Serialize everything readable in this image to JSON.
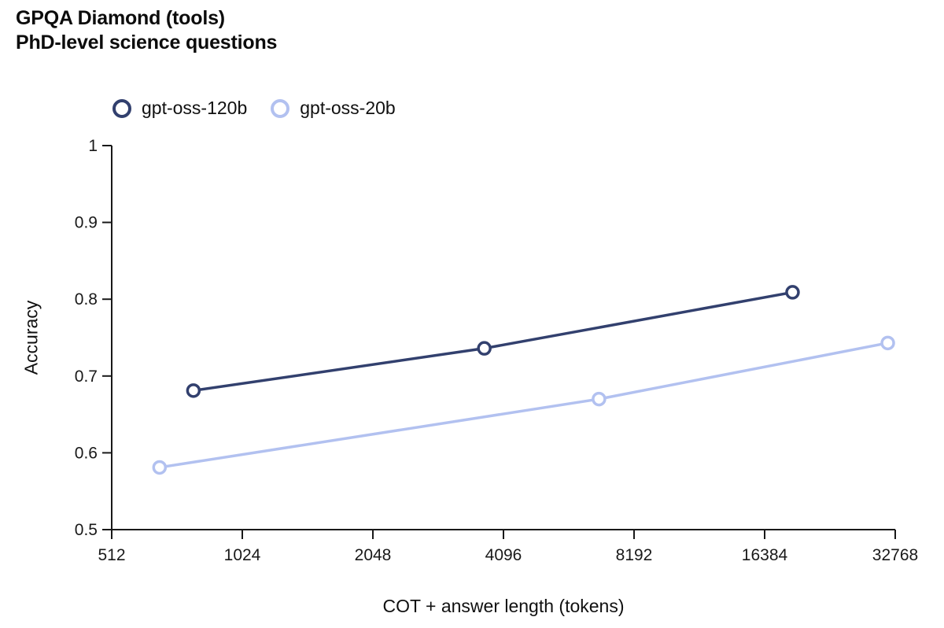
{
  "title": {
    "line1": "GPQA Diamond (tools)",
    "line2": "PhD-level science questions"
  },
  "legend": {
    "items": [
      {
        "label": "gpt-oss-120b",
        "color": "#32406e"
      },
      {
        "label": "gpt-oss-20b",
        "color": "#b2c1f0"
      }
    ]
  },
  "axis": {
    "xlabel": "COT + answer length (tokens)",
    "ylabel": "Accuracy"
  },
  "chart_data": {
    "type": "line",
    "title": "GPQA Diamond (tools) — PhD-level science questions",
    "xlabel": "COT + answer length (tokens)",
    "ylabel": "Accuracy",
    "x_scale": "log2",
    "xlim": [
      512,
      32768
    ],
    "ylim": [
      0.5,
      1.0
    ],
    "x_ticks": [
      512,
      1024,
      2048,
      4096,
      8192,
      16384,
      32768
    ],
    "y_ticks": [
      1,
      0.9,
      0.8,
      0.7,
      0.6,
      0.5
    ],
    "grid": false,
    "legend_position": "top-left",
    "marker": "open-circle",
    "series": [
      {
        "name": "gpt-oss-120b",
        "color": "#32406e",
        "points": [
          {
            "x": 790,
            "y": 0.681
          },
          {
            "x": 3700,
            "y": 0.736
          },
          {
            "x": 19000,
            "y": 0.809
          }
        ]
      },
      {
        "name": "gpt-oss-20b",
        "color": "#b2c1f0",
        "points": [
          {
            "x": 660,
            "y": 0.581
          },
          {
            "x": 6800,
            "y": 0.67
          },
          {
            "x": 31500,
            "y": 0.743
          }
        ]
      }
    ]
  }
}
